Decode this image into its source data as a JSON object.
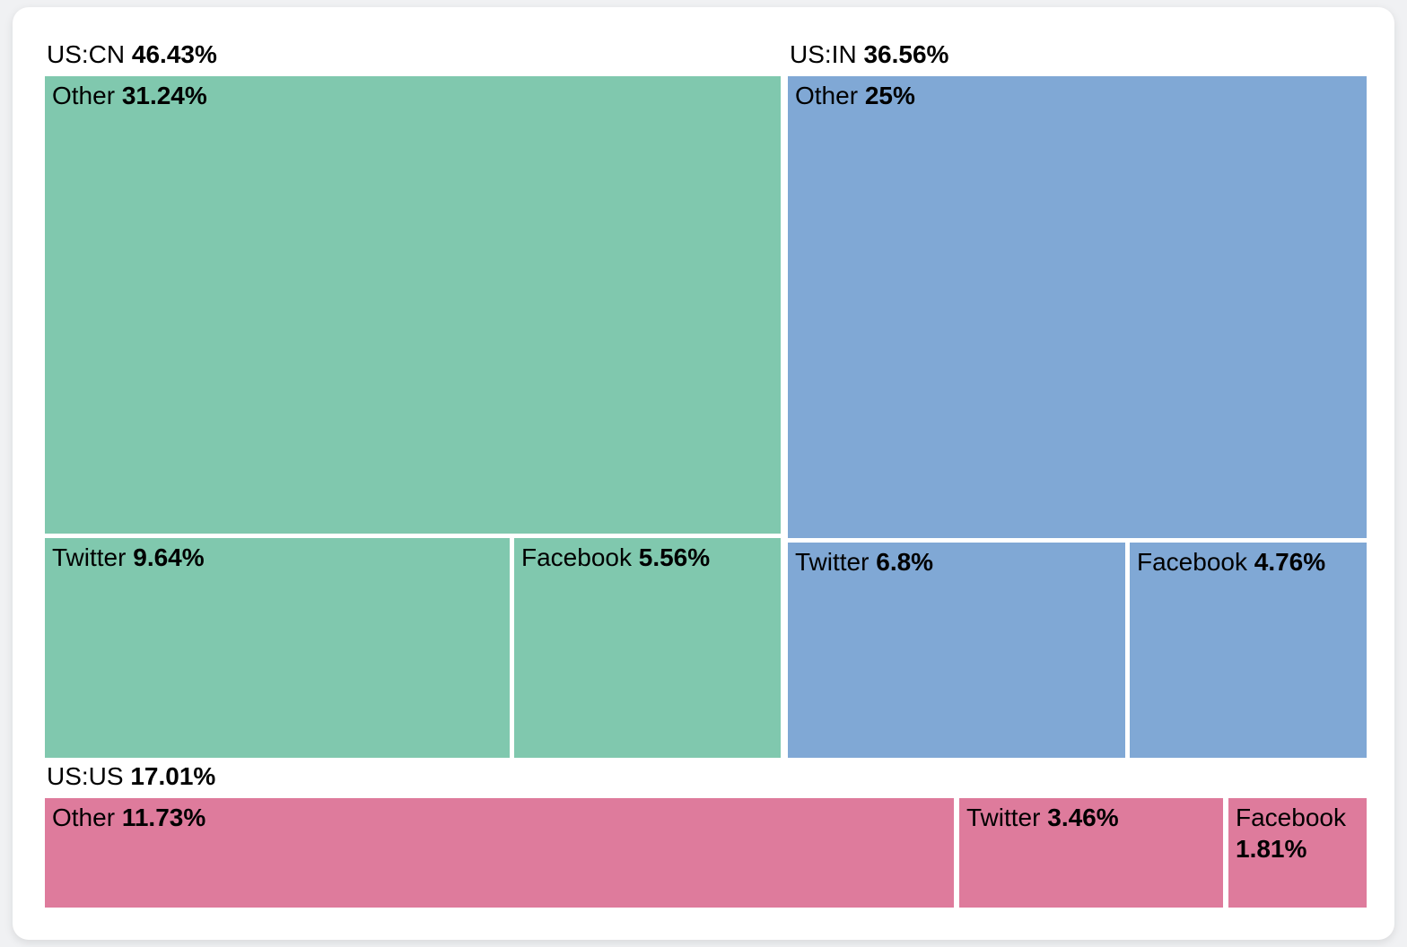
{
  "chart_data": {
    "type": "treemap",
    "unit": "%",
    "groups": [
      {
        "name": "US:CN",
        "value": 46.43,
        "display": "46.43%",
        "color": "#80C8AE",
        "children": [
          {
            "name": "Other",
            "value": 31.24,
            "display": "31.24%"
          },
          {
            "name": "Twitter",
            "value": 9.64,
            "display": "9.64%"
          },
          {
            "name": "Facebook",
            "value": 5.56,
            "display": "5.56%"
          }
        ]
      },
      {
        "name": "US:IN",
        "value": 36.56,
        "display": "36.56%",
        "color": "#80A8D5",
        "children": [
          {
            "name": "Other",
            "value": 25,
            "display": "25%"
          },
          {
            "name": "Twitter",
            "value": 6.8,
            "display": "6.8%"
          },
          {
            "name": "Facebook",
            "value": 4.76,
            "display": "4.76%"
          }
        ]
      },
      {
        "name": "US:US",
        "value": 17.01,
        "display": "17.01%",
        "color": "#DE7B9C",
        "children": [
          {
            "name": "Other",
            "value": 11.73,
            "display": "11.73%"
          },
          {
            "name": "Twitter",
            "value": 3.46,
            "display": "3.46%"
          },
          {
            "name": "Facebook",
            "value": 1.81,
            "display": "1.81%"
          }
        ]
      }
    ]
  }
}
